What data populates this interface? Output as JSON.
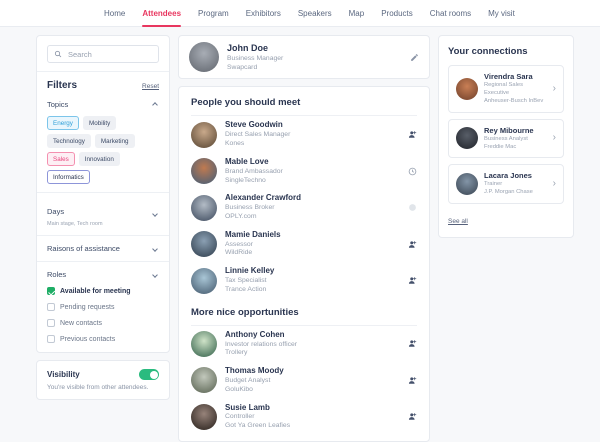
{
  "nav": {
    "items": [
      {
        "label": "Home",
        "active": false
      },
      {
        "label": "Attendees",
        "active": true
      },
      {
        "label": "Program",
        "active": false
      },
      {
        "label": "Exhibitors",
        "active": false
      },
      {
        "label": "Speakers",
        "active": false
      },
      {
        "label": "Map",
        "active": false
      },
      {
        "label": "Products",
        "active": false
      },
      {
        "label": "Chat rooms",
        "active": false
      },
      {
        "label": "My visit",
        "active": false
      }
    ]
  },
  "sidebar": {
    "search": {
      "placeholder": "Search"
    },
    "filters": {
      "title": "Filters",
      "reset_label": "Reset",
      "topics": {
        "title": "Topics",
        "tags": [
          {
            "label": "Energy",
            "style": "blue"
          },
          {
            "label": "Mobility",
            "style": "default"
          },
          {
            "label": "Technology",
            "style": "default"
          },
          {
            "label": "Marketing",
            "style": "default"
          },
          {
            "label": "Sales",
            "style": "pink"
          },
          {
            "label": "Innovation",
            "style": "default"
          },
          {
            "label": "Informatics",
            "style": "indigo"
          }
        ]
      },
      "days": {
        "title": "Days",
        "subtitle": "Main stage, Tech room"
      },
      "raisons": {
        "title": "Raisons of assistance"
      },
      "roles": {
        "title": "Roles"
      },
      "checkboxes": [
        {
          "label": "Available for meeting",
          "checked": true
        },
        {
          "label": "Pending requests",
          "checked": false
        },
        {
          "label": "New contacts",
          "checked": false
        },
        {
          "label": "Previous contacts",
          "checked": false
        }
      ]
    },
    "visibility": {
      "title": "Visibility",
      "description": "You're visible from other attendees.",
      "enabled": true
    }
  },
  "profile": {
    "name": "John Doe",
    "title": "Business Manager",
    "company": "Swapcard",
    "avatar_colors": [
      "#a8adb5",
      "#5f646c"
    ]
  },
  "main": {
    "sections": [
      {
        "title": "People you should meet",
        "people": [
          {
            "name": "Steve Goodwin",
            "title": "Direct Sales Manager",
            "company": "Kones",
            "icon": "person-add-icon",
            "avatar_colors": [
              "#c9a98b",
              "#54422f"
            ]
          },
          {
            "name": "Mable Love",
            "title": "Brand Ambassador",
            "company": "SingleTechno",
            "icon": "clock-icon",
            "avatar_colors": [
              "#c07a50",
              "#3f5d7a"
            ]
          },
          {
            "name": "Alexander Crawford",
            "title": "Business Broker",
            "company": "OPLY.com",
            "icon": "dot-icon",
            "avatar_colors": [
              "#b3bcc6",
              "#39465a"
            ]
          },
          {
            "name": "Mamie Daniels",
            "title": "Assessor",
            "company": "WildRide",
            "icon": "person-add-icon",
            "avatar_colors": [
              "#8ba0b3",
              "#2c3a49"
            ]
          },
          {
            "name": "Linnie Kelley",
            "title": "Tax Specialist",
            "company": "Trance Action",
            "icon": "person-add-icon",
            "avatar_colors": [
              "#a9c6d6",
              "#41566a"
            ]
          }
        ]
      },
      {
        "title": "More nice opportunities",
        "people": [
          {
            "name": "Anthony Cohen",
            "title": "Investor relations officer",
            "company": "Trollery",
            "icon": "person-add-icon",
            "avatar_colors": [
              "#cfe3c8",
              "#2e5d46"
            ]
          },
          {
            "name": "Thomas Moody",
            "title": "Budget Analyst",
            "company": "GoluKibo",
            "icon": "person-add-icon",
            "avatar_colors": [
              "#c2c8bc",
              "#555f4d"
            ]
          },
          {
            "name": "Susie Lamb",
            "title": "Controller",
            "company": "Got Ya Green Leafies",
            "icon": "person-add-icon",
            "avatar_colors": [
              "#97837a",
              "#241d18"
            ]
          }
        ]
      }
    ]
  },
  "connections": {
    "title": "Your connections",
    "see_all_label": "See all",
    "people": [
      {
        "name": "Virendra Sara",
        "title": "Regional Sales Executive",
        "company": "Anheuser-Busch InBev",
        "avatar_colors": [
          "#c97f55",
          "#6e3f2a"
        ]
      },
      {
        "name": "Rey Mibourne",
        "title": "Business Analyst",
        "company": "Freddie Mac",
        "avatar_colors": [
          "#585e68",
          "#1f2229"
        ]
      },
      {
        "name": "Lacara Jones",
        "title": "Trainer",
        "company": "J.P. Morgan Chase",
        "avatar_colors": [
          "#8395a7",
          "#37424f"
        ]
      }
    ]
  },
  "colors": {
    "accent": "#e8365f",
    "toggle_on": "#2abb7f",
    "checkbox_checked": "#1fae66"
  }
}
